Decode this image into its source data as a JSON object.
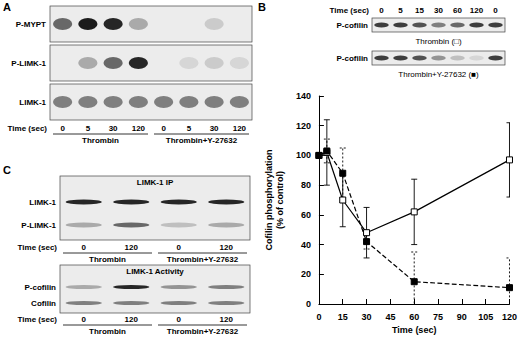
{
  "panels": [
    {
      "label": "A",
      "type": "blot",
      "rows": [
        {
          "label": "P-MYPT",
          "bands": [
            0.6,
            0.95,
            0.9,
            0.3,
            0,
            0,
            0.15,
            0
          ]
        },
        {
          "label": "P-LIMK-1",
          "bands": [
            0,
            0.3,
            0.6,
            0.9,
            0,
            0.1,
            0.15,
            0.1
          ]
        },
        {
          "label": "LIMK-1",
          "bands": [
            0.5,
            0.5,
            0.5,
            0.5,
            0.5,
            0.5,
            0.5,
            0.5
          ]
        }
      ],
      "time_label": "Time (sec)",
      "times": [
        0,
        5,
        30,
        120,
        0,
        5,
        30,
        120
      ],
      "groups": [
        "Thrombin",
        "Thrombin+Y-27632"
      ]
    },
    {
      "label": "C",
      "type": "blot",
      "sections": [
        {
          "title": "LIMK-1 IP",
          "rows": [
            {
              "label": "LIMK-1",
              "bands": [
                0.9,
                0.9,
                0.9,
                0.9
              ]
            },
            {
              "label": "P-LIMK-1",
              "bands": [
                0.3,
                0.6,
                0.2,
                0.3
              ]
            }
          ],
          "time_label": "Time (sec)",
          "times": [
            0,
            120,
            0,
            120
          ],
          "groups": [
            "Thrombin",
            "Thrombin+Y-27632"
          ]
        },
        {
          "title": "LIMK-1 Activity",
          "rows": [
            {
              "label": "P-cofilin",
              "bands": [
                0.3,
                0.9,
                0.4,
                0.5
              ]
            },
            {
              "label": "Cofilin",
              "bands": [
                0.5,
                0.5,
                0.5,
                0.5
              ]
            }
          ],
          "time_label": "Time (sec)",
          "times": [
            0,
            120,
            0,
            120
          ],
          "groups": [
            "Thrombin",
            "Thrombin+Y-27632"
          ]
        }
      ]
    }
  ],
  "chart_data": {
    "label": "B",
    "type": "line",
    "xlabel": "Time (sec)",
    "ylabel": "Cofilin phosphorylation\n(% of control)",
    "x": [
      0,
      5,
      15,
      30,
      60,
      120
    ],
    "xlim": [
      0,
      120
    ],
    "xticks": [
      0,
      15,
      30,
      45,
      60,
      75,
      90,
      105,
      120
    ],
    "ylim": [
      0,
      140
    ],
    "yticks": [
      0,
      20,
      40,
      60,
      80,
      100,
      120,
      140
    ],
    "grid": false,
    "series": [
      {
        "name": "Thrombin (□)",
        "color": "#000000",
        "marker": "open_square",
        "line_style": "solid",
        "values": [
          100,
          102,
          70,
          48,
          62,
          97
        ],
        "errors": [
          0,
          22,
          18,
          17,
          22,
          25
        ]
      },
      {
        "name": "Thrombin+Y-27632 (■)",
        "color": "#000000",
        "marker": "filled_square",
        "line_style": "dashed",
        "values": [
          100,
          103,
          88,
          42,
          15,
          11
        ],
        "errors": [
          0,
          8,
          17,
          5,
          20,
          20
        ]
      }
    ],
    "blots": {
      "time_label": "Time (sec)",
      "times": [
        0,
        5,
        15,
        30,
        60,
        120,
        0
      ],
      "rows": [
        {
          "label": "P-cofilin",
          "series": 0,
          "bands": [
            0.8,
            0.8,
            0.7,
            0.5,
            0.6,
            0.8,
            0.8
          ]
        },
        {
          "label": "P-cofilin",
          "series": 1,
          "bands": [
            0.8,
            0.8,
            0.7,
            0.4,
            0.2,
            0.1,
            0.8
          ]
        }
      ]
    }
  }
}
